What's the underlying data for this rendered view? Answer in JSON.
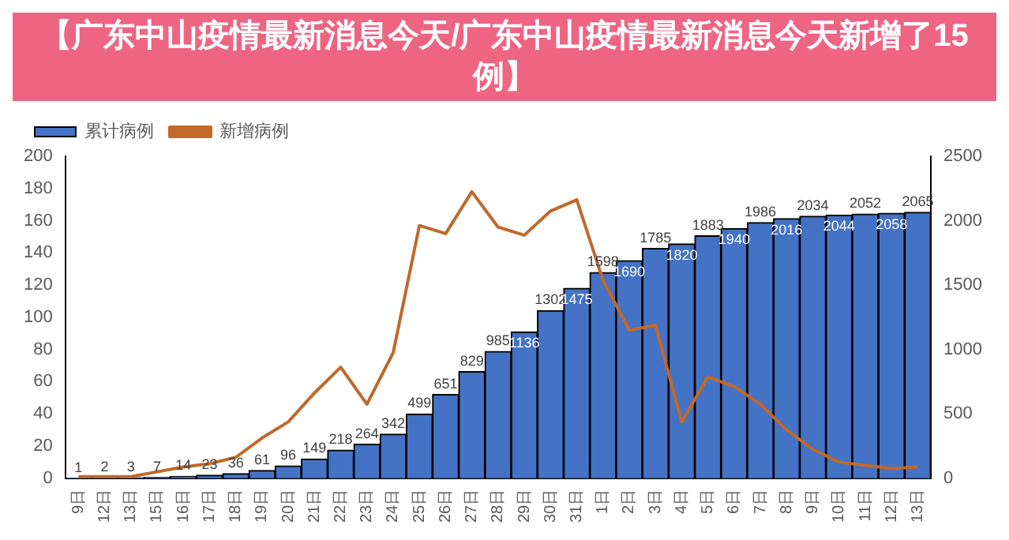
{
  "chart_data": {
    "type": "bar",
    "title": "【广东中山疫情最新消息今天/广东中山疫情最新消息今天新增了15例】",
    "categories": [
      "9日",
      "12日",
      "13日",
      "15日",
      "16日",
      "17日",
      "18日",
      "19日",
      "20日",
      "21日",
      "22日",
      "23日",
      "24日",
      "25日",
      "26日",
      "27日",
      "28日",
      "29日",
      "30日",
      "31日",
      "1日",
      "2日",
      "3日",
      "4日",
      "5日",
      "6日",
      "7日",
      "8日",
      "9日",
      "10日",
      "11日",
      "12日",
      "13日"
    ],
    "series": [
      {
        "name": "累计病例",
        "type": "bar",
        "axis": "y2",
        "color": "#4472c4",
        "values": [
          1,
          2,
          3,
          7,
          14,
          23,
          36,
          61,
          96,
          149,
          218,
          264,
          342,
          499,
          651,
          829,
          985,
          1136,
          1302,
          1475,
          1598,
          1690,
          1785,
          1820,
          1883,
          1940,
          1986,
          2016,
          2034,
          2044,
          2052,
          2058,
          2065
        ],
        "value_labels": [
          "1",
          "2",
          "3",
          "7",
          "14",
          "23",
          "36",
          "61",
          "96",
          "149",
          "218",
          "264",
          "342",
          "499",
          "651",
          "829",
          "985",
          "1136",
          "1302",
          "1475",
          "1598",
          "1690",
          "1785",
          "1820",
          "1883",
          "1940",
          "1986",
          "2016",
          "2034",
          "2044",
          "2052",
          "2058",
          "2065"
        ]
      },
      {
        "name": "新增病例",
        "type": "line",
        "axis": "y",
        "color": "#c0692a",
        "values": [
          1,
          1,
          1,
          4,
          7,
          9,
          13,
          25,
          35,
          53,
          69,
          46,
          78,
          157,
          152,
          178,
          156,
          151,
          166,
          173,
          123,
          92,
          95,
          35,
          63,
          57,
          46,
          30,
          18,
          10,
          8,
          6,
          7
        ]
      }
    ],
    "ylim": [
      0,
      200
    ],
    "yticks": [
      0,
      20,
      40,
      60,
      80,
      100,
      120,
      140,
      160,
      180,
      200
    ],
    "y2lim": [
      0,
      2500
    ],
    "y2ticks": [
      0,
      500,
      1000,
      1500,
      2000,
      2500
    ],
    "grid": false,
    "legend": "top left",
    "marker": "none",
    "line_style": "solid"
  }
}
